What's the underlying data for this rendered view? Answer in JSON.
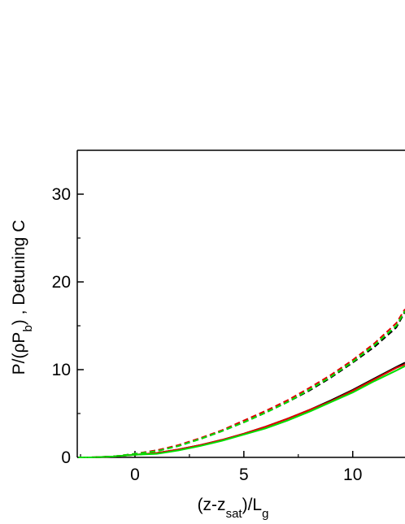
{
  "chart_data": {
    "type": "line",
    "xlabel_parts": [
      "(z-z",
      "sat",
      ")/L",
      "g"
    ],
    "ylabel_parts": [
      "P/(ρP",
      "b",
      ") , Detuning C"
    ],
    "x": [
      -2.6,
      -2,
      -1,
      0,
      1,
      2,
      3,
      4,
      5,
      6,
      7,
      8,
      9,
      10,
      11,
      12,
      12.4
    ],
    "series": [
      {
        "color": "#000000",
        "dash": false,
        "values": [
          0,
          0,
          0.1,
          0.3,
          0.5,
          0.9,
          1.4,
          2.0,
          2.7,
          3.5,
          4.4,
          5.4,
          6.5,
          7.7,
          9.0,
          10.3,
          10.8
        ]
      },
      {
        "color": "#e00000",
        "dash": false,
        "values": [
          0,
          0,
          0.1,
          0.3,
          0.5,
          0.9,
          1.4,
          2.0,
          2.7,
          3.5,
          4.4,
          5.4,
          6.4,
          7.6,
          8.9,
          10.2,
          10.6
        ]
      },
      {
        "color": "#00e000",
        "dash": false,
        "values": [
          0,
          0,
          0.1,
          0.3,
          0.4,
          0.8,
          1.3,
          1.9,
          2.6,
          3.3,
          4.2,
          5.2,
          6.3,
          7.4,
          8.7,
          9.9,
          10.4
        ]
      },
      {
        "color": "#000000",
        "dash": true,
        "values": [
          0,
          0,
          0.1,
          0.4,
          0.8,
          1.3,
          2.1,
          3.0,
          4.0,
          5.1,
          6.3,
          7.6,
          9.1,
          10.8,
          12.6,
          14.8,
          16.6
        ]
      },
      {
        "color": "#e00000",
        "dash": true,
        "values": [
          0,
          0,
          0.1,
          0.4,
          0.8,
          1.4,
          2.2,
          3.1,
          4.2,
          5.3,
          6.5,
          7.9,
          9.4,
          11.1,
          13.0,
          15.3,
          16.9
        ]
      },
      {
        "color": "#00e000",
        "dash": true,
        "values": [
          0,
          0,
          0.1,
          0.4,
          0.7,
          1.3,
          2.1,
          3.0,
          4.0,
          5.1,
          6.3,
          7.7,
          9.2,
          10.9,
          12.8,
          15.0,
          16.7
        ]
      }
    ],
    "xlim": [
      -2.65,
      12.4
    ],
    "ylim": [
      0,
      35
    ],
    "xticks": [
      0,
      5,
      10
    ],
    "yticks": [
      0,
      10,
      20,
      30
    ],
    "xminorticks": [
      -2.5,
      2.5,
      7.5
    ],
    "yminorticks": [
      5,
      15,
      25
    ]
  }
}
